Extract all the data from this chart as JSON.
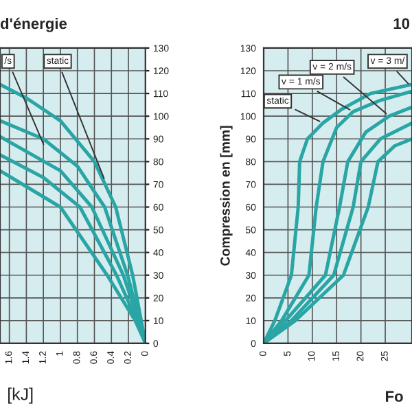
{
  "chart_data": [
    {
      "type": "line",
      "title": "d'énergie",
      "xlabel": "[kJ]",
      "xlim": [
        1.71,
        0
      ],
      "xticks": [
        1.6,
        1.4,
        1.2,
        1,
        0.8,
        0.6,
        0.4,
        0.2,
        0
      ],
      "ylim": [
        0,
        130
      ],
      "yticks": [
        0,
        10,
        20,
        30,
        40,
        50,
        60,
        70,
        80,
        90,
        100,
        110,
        120,
        130
      ],
      "grid": true,
      "legend": false,
      "marker": "none",
      "line_style": "solid",
      "series": [
        {
          "color": "#2aa5a5",
          "x": [
            0,
            0.05,
            0.15,
            0.35,
            0.6,
            1.0,
            1.4,
            1.71
          ],
          "values": [
            0,
            10,
            30,
            60,
            80,
            98,
            108,
            114
          ]
        },
        {
          "color": "#2aa5a5",
          "x": [
            0,
            0.07,
            0.21,
            0.48,
            0.8,
            1.2,
            1.71
          ],
          "values": [
            0,
            10,
            30,
            60,
            78,
            90,
            98
          ]
        },
        {
          "color": "#2aa5a5",
          "x": [
            0,
            0.08,
            0.26,
            0.63,
            1.0,
            1.71
          ],
          "values": [
            0,
            10,
            30,
            60,
            76,
            91
          ]
        },
        {
          "color": "#2aa5a5",
          "x": [
            0,
            0.1,
            0.34,
            0.77,
            1.2,
            1.71
          ],
          "values": [
            0,
            10,
            30,
            60,
            73,
            83
          ]
        },
        {
          "color": "#2aa5a5",
          "x": [
            0,
            0.12,
            0.45,
            1.0,
            1.4,
            1.71
          ],
          "values": [
            0,
            10,
            30,
            60,
            69,
            76
          ]
        }
      ],
      "annotations": [
        {
          "text": "/s",
          "x": 1.18,
          "y": 86
        },
        {
          "text": "static",
          "x": 0.47,
          "y": 71
        }
      ]
    },
    {
      "type": "line",
      "title": "10",
      "xlabel": "Fo",
      "ylabel": "Compression en [mm]",
      "xlim": [
        0,
        30.5
      ],
      "xticks": [
        0,
        5,
        10,
        15,
        20,
        25
      ],
      "ylim": [
        0,
        130
      ],
      "yticks": [
        0,
        10,
        20,
        30,
        40,
        50,
        60,
        70,
        80,
        90,
        100,
        110,
        120,
        130
      ],
      "grid": true,
      "legend": false,
      "marker": "none",
      "line_style": "solid",
      "series": [
        {
          "color": "#2aa5a5",
          "x": [
            0,
            2.3,
            5.7,
            7.1,
            7.4,
            9,
            12.2,
            16,
            22,
            30.5
          ],
          "values": [
            0,
            10,
            30,
            60,
            80,
            90,
            97,
            103,
            110,
            114
          ]
        },
        {
          "color": "#2aa5a5",
          "x": [
            0,
            3.7,
            9.3,
            10.8,
            12.2,
            15,
            18.4,
            24,
            30.5
          ],
          "values": [
            0,
            10,
            30,
            60,
            80,
            95,
            102,
            107,
            111
          ]
        },
        {
          "color": "#2aa5a5",
          "x": [
            0,
            4.5,
            12.7,
            15.6,
            17.3,
            21,
            25.8,
            30.5
          ],
          "values": [
            0,
            10,
            30,
            60,
            80,
            93,
            100,
            104
          ]
        },
        {
          "color": "#2aa5a5",
          "x": [
            0,
            5.7,
            14.4,
            18.4,
            20,
            24,
            30.5
          ],
          "values": [
            0,
            10,
            30,
            60,
            80,
            90,
            97
          ]
        },
        {
          "color": "#2aa5a5",
          "x": [
            0,
            6.5,
            16.4,
            21.5,
            23.5,
            27,
            30.5
          ],
          "values": [
            0,
            10,
            30,
            60,
            80,
            87,
            90
          ]
        }
      ],
      "annotations": [
        {
          "text": "static",
          "x": 12.2,
          "y": 97
        },
        {
          "text": "v = 1 m/s",
          "x": 18.4,
          "y": 102
        },
        {
          "text": "v = 2 m/s",
          "x": 25.8,
          "y": 100
        },
        {
          "text": "v = 3 m/",
          "x": 30.3,
          "y": 113
        }
      ]
    }
  ]
}
